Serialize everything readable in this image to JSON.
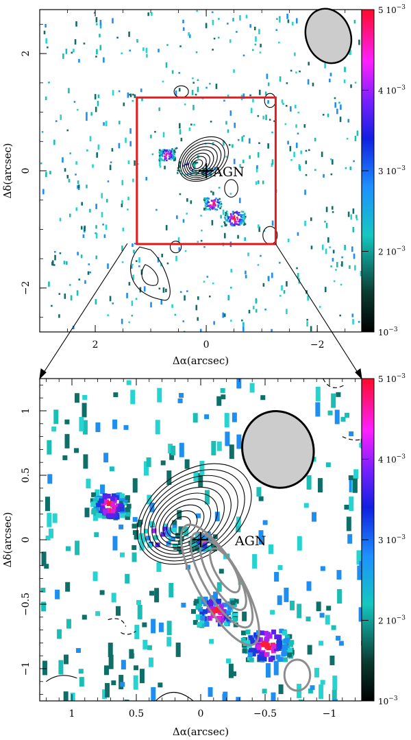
{
  "figure": {
    "panels": [
      {
        "id": "top",
        "xlabel": "Δα(arcsec)",
        "ylabel": "Δδ(arcsec)",
        "xlim": [
          3.0,
          -2.8
        ],
        "ylim": [
          -2.75,
          2.75
        ],
        "xticks": [
          {
            "value": 2,
            "label": "2"
          },
          {
            "value": 0,
            "label": "0"
          },
          {
            "value": -2,
            "label": "−2"
          }
        ],
        "yticks": [
          {
            "value": 2,
            "label": "2"
          },
          {
            "value": 0,
            "label": "0"
          },
          {
            "value": -2,
            "label": "−2"
          }
        ],
        "agn_label": "AGN",
        "agn_position": [
          0,
          0
        ],
        "zoom_box": {
          "x": [
            1.25,
            -1.25
          ],
          "y": [
            1.25,
            -1.25
          ],
          "color": "#e41a1c"
        },
        "beam": {
          "x": -2.2,
          "y": 2.3,
          "width_arcsec": 0.8,
          "height_arcsec": 0.95,
          "fill": "#cccccc"
        },
        "colorbar": {
          "ticks": [
            {
              "label": "5 10",
              "exp": "−3"
            },
            {
              "label": "4 10",
              "exp": "−3"
            },
            {
              "label": "3 10",
              "exp": "−3"
            },
            {
              "label": "2 10",
              "exp": "−3"
            },
            {
              "label": "10",
              "exp": "−3"
            }
          ],
          "range": [
            0.001,
            0.005
          ]
        }
      },
      {
        "id": "bottom",
        "xlabel": "Δα(arcsec)",
        "ylabel": "Δδ(arcsec)",
        "xlim": [
          1.25,
          -1.25
        ],
        "ylim": [
          -1.25,
          1.25
        ],
        "xticks": [
          {
            "value": 1,
            "label": "1"
          },
          {
            "value": 0.5,
            "label": "0.5"
          },
          {
            "value": 0,
            "label": "0"
          },
          {
            "value": -0.5,
            "label": "−0.5"
          },
          {
            "value": -1,
            "label": "−1"
          }
        ],
        "yticks": [
          {
            "value": 1,
            "label": "1"
          },
          {
            "value": 0.5,
            "label": "0.5"
          },
          {
            "value": 0,
            "label": "0"
          },
          {
            "value": -0.5,
            "label": "−0.5"
          },
          {
            "value": -1,
            "label": "−1"
          }
        ],
        "agn_label": "AGN",
        "agn_position": [
          0,
          0
        ],
        "beam": {
          "x": -0.6,
          "y": 0.7,
          "width_arcsec": 0.55,
          "height_arcsec": 0.6,
          "fill": "#cccccc"
        },
        "colorbar": {
          "ticks": [
            {
              "label": "5 10",
              "exp": "−3"
            },
            {
              "label": "4 10",
              "exp": "−3"
            },
            {
              "label": "3 10",
              "exp": "−3"
            },
            {
              "label": "2 10",
              "exp": "−3"
            },
            {
              "label": "10",
              "exp": "−3"
            }
          ],
          "range": [
            0.001,
            0.005
          ]
        }
      }
    ],
    "colors": {
      "contour_black": "#000000",
      "contour_gray": "#8c8c8c",
      "zoom_box": "#e41a1c",
      "beam_fill": "#cccccc"
    }
  }
}
